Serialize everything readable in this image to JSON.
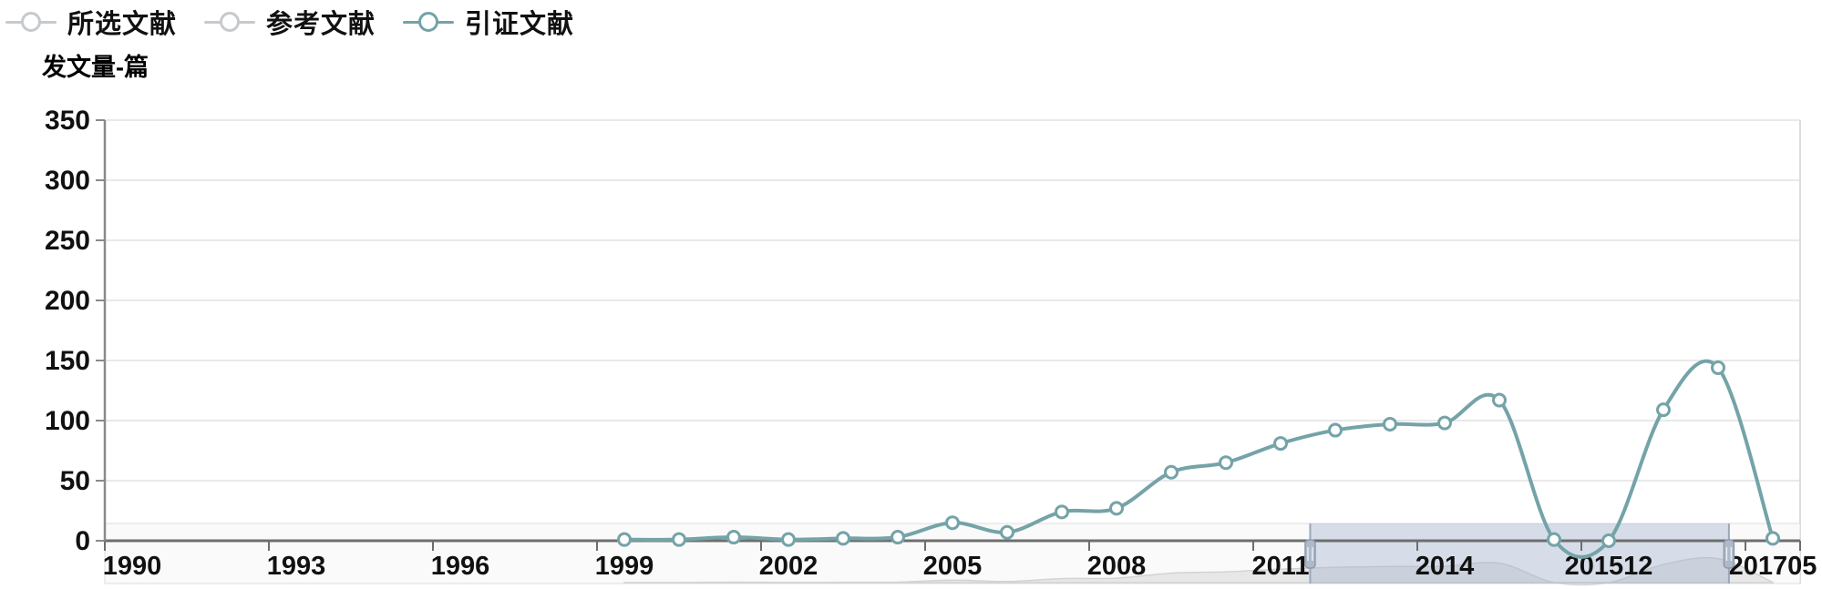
{
  "legend": {
    "items": [
      {
        "label": "所选文献",
        "color": "#c6cacd"
      },
      {
        "label": "参考文献",
        "color": "#c6cacd"
      },
      {
        "label": "引证文献",
        "color": "#74a3a8"
      }
    ]
  },
  "chart_data": {
    "type": "line",
    "title": "",
    "xlabel": "",
    "ylabel": "发文量-篇",
    "ylim": [
      0,
      350
    ],
    "yticks": [
      0,
      50,
      100,
      150,
      200,
      250,
      300,
      350
    ],
    "grid": true,
    "legend_position": "top-left",
    "categories": [
      "1990",
      "1991",
      "1992",
      "1993",
      "1994",
      "1995",
      "1996",
      "1997",
      "1998",
      "1999",
      "2000",
      "2001",
      "2002",
      "2003",
      "2004",
      "2005",
      "2006",
      "2007",
      "2008",
      "2009",
      "2010",
      "2011",
      "2012",
      "2013",
      "2014",
      "2015",
      "201506",
      "201512",
      "201606",
      "201612",
      "201705"
    ],
    "x_tick_label_indices": [
      0,
      3,
      6,
      9,
      12,
      15,
      18,
      21,
      24,
      27,
      30
    ],
    "x_tick_labels": [
      "1990",
      "1993",
      "1996",
      "1999",
      "2002",
      "2005",
      "2008",
      "2011",
      "2014",
      "201512",
      "201705"
    ],
    "series": [
      {
        "name": "所选文献",
        "color": "#c6cacd",
        "values": []
      },
      {
        "name": "参考文献",
        "color": "#c6cacd",
        "values": []
      },
      {
        "name": "引证文献",
        "color": "#74a3a8",
        "values": [
          null,
          null,
          null,
          null,
          null,
          null,
          null,
          null,
          null,
          1,
          1,
          3,
          1,
          2,
          3,
          15,
          7,
          24,
          27,
          57,
          65,
          81,
          92,
          97,
          98,
          117,
          1,
          0,
          109,
          144,
          2
        ]
      }
    ]
  },
  "datazoom": {
    "start_percent": 71.1,
    "end_percent": 95.8,
    "track_color": "#fafafa",
    "silhouette_color": "#e7e7e7",
    "window_color": "rgba(160,178,204,0.40)",
    "handle_color": "#aeb9ca"
  },
  "colors": {
    "axis": "#6e6e6e",
    "gridline": "#e9e9e9",
    "text": "#111111",
    "marker_fill": "#fdfefe"
  }
}
